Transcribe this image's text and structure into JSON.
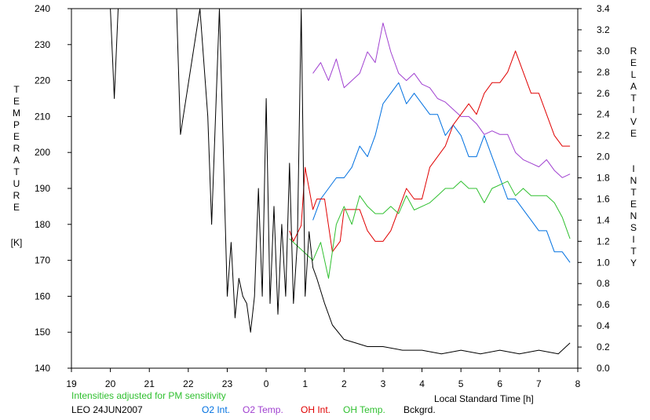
{
  "chart_data": {
    "type": "line",
    "left_axis": {
      "title_letters": [
        "T",
        "E",
        "M",
        "P",
        "E",
        "R",
        "A",
        "T",
        "U",
        "R",
        "E"
      ],
      "unit": "[K]",
      "range": [
        140,
        240
      ],
      "ticks": [
        140,
        150,
        160,
        170,
        180,
        190,
        200,
        210,
        220,
        230,
        240
      ]
    },
    "right_axis": {
      "title_word1": [
        "R",
        "E",
        "L",
        "A",
        "T",
        "I",
        "V",
        "E"
      ],
      "title_word2": [
        "I",
        "N",
        "T",
        "E",
        "N",
        "S",
        "I",
        "T",
        "Y"
      ],
      "range": [
        0.0,
        3.4
      ],
      "ticks": [
        "0.0",
        "0.2",
        "0.4",
        "0.6",
        "0.8",
        "1.0",
        "1.2",
        "1.4",
        "1.6",
        "1.8",
        "2.0",
        "2.2",
        "2.4",
        "2.6",
        "2.8",
        "3.0",
        "3.2",
        "3.4"
      ]
    },
    "x_axis": {
      "label": "Local Standard Time [h]",
      "range": [
        19,
        32
      ],
      "ticks": [
        "19",
        "20",
        "21",
        "22",
        "23",
        "0",
        "1",
        "2",
        "3",
        "4",
        "5",
        "6",
        "7",
        "8"
      ]
    },
    "note": "Intensities adjusted for PM sensitivity",
    "station": "LEO 24JUN2007",
    "legend_placement": "bottom",
    "series": [
      {
        "name": "O2 Int.",
        "color": "#0070e0",
        "axis": "right",
        "x": [
          25.2,
          25.4,
          25.6,
          25.8,
          26.0,
          26.2,
          26.4,
          26.6,
          26.8,
          27.0,
          27.2,
          27.4,
          27.6,
          27.8,
          28.0,
          28.2,
          28.4,
          28.6,
          28.8,
          29.0,
          29.2,
          29.4,
          29.6,
          29.8,
          30.0,
          30.2,
          30.4,
          30.6,
          30.8,
          31.0,
          31.2,
          31.4,
          31.6,
          31.8
        ],
        "values": [
          1.4,
          1.6,
          1.7,
          1.8,
          1.8,
          1.9,
          2.1,
          2.0,
          2.2,
          2.5,
          2.6,
          2.7,
          2.5,
          2.6,
          2.5,
          2.4,
          2.4,
          2.2,
          2.3,
          2.2,
          2.0,
          2.0,
          2.2,
          2.0,
          1.8,
          1.6,
          1.6,
          1.5,
          1.4,
          1.3,
          1.3,
          1.1,
          1.1,
          1.0
        ]
      },
      {
        "name": "O2 Temp.",
        "color": "#a040d0",
        "axis": "left",
        "x": [
          25.2,
          25.4,
          25.6,
          25.8,
          26.0,
          26.2,
          26.4,
          26.6,
          26.8,
          27.0,
          27.2,
          27.4,
          27.6,
          27.8,
          28.0,
          28.2,
          28.4,
          28.6,
          28.8,
          29.0,
          29.2,
          29.4,
          29.6,
          29.8,
          30.0,
          30.2,
          30.4,
          30.6,
          30.8,
          31.0,
          31.2,
          31.4,
          31.6,
          31.8
        ],
        "values": [
          222,
          225,
          220,
          226,
          218,
          220,
          222,
          228,
          225,
          236,
          228,
          222,
          220,
          222,
          219,
          218,
          215,
          214,
          212,
          210,
          210,
          208,
          205,
          206,
          205,
          205,
          200,
          198,
          197,
          196,
          198,
          195,
          193,
          194
        ]
      },
      {
        "name": "OH Int.",
        "color": "#e00000",
        "axis": "right",
        "x": [
          24.6,
          24.7,
          24.9,
          25.0,
          25.2,
          25.3,
          25.5,
          25.7,
          25.9,
          26.0,
          26.2,
          26.4,
          26.6,
          26.8,
          27.0,
          27.2,
          27.4,
          27.6,
          27.8,
          28.0,
          28.2,
          28.4,
          28.6,
          28.8,
          29.0,
          29.2,
          29.4,
          29.6,
          29.8,
          30.0,
          30.2,
          30.4,
          30.6,
          30.8,
          31.0,
          31.2,
          31.4,
          31.6,
          31.8
        ],
        "values": [
          1.3,
          1.2,
          1.35,
          1.9,
          1.5,
          1.6,
          1.6,
          1.1,
          1.2,
          1.5,
          1.5,
          1.5,
          1.3,
          1.2,
          1.2,
          1.3,
          1.5,
          1.7,
          1.6,
          1.6,
          1.9,
          2.0,
          2.1,
          2.3,
          2.4,
          2.5,
          2.4,
          2.6,
          2.7,
          2.7,
          2.8,
          3.0,
          2.8,
          2.6,
          2.6,
          2.4,
          2.2,
          2.1,
          2.1
        ]
      },
      {
        "name": "OH Temp.",
        "color": "#30c030",
        "axis": "left",
        "x": [
          24.6,
          25.2,
          25.4,
          25.6,
          25.8,
          26.0,
          26.2,
          26.4,
          26.6,
          26.8,
          27.0,
          27.2,
          27.4,
          27.6,
          27.8,
          28.0,
          28.2,
          28.4,
          28.6,
          28.8,
          29.0,
          29.2,
          29.4,
          29.6,
          29.8,
          30.0,
          30.2,
          30.4,
          30.6,
          30.8,
          31.0,
          31.2,
          31.4,
          31.6,
          31.8
        ],
        "values": [
          176,
          170,
          175,
          165,
          180,
          185,
          180,
          188,
          185,
          183,
          183,
          185,
          183,
          188,
          184,
          185,
          186,
          188,
          190,
          190,
          192,
          190,
          190,
          186,
          190,
          191,
          192,
          188,
          190,
          188,
          188,
          188,
          186,
          182,
          176
        ]
      },
      {
        "name": "Bckgrd.",
        "color": "#000000",
        "axis": "left",
        "x": [
          20.0,
          20.1,
          20.2,
          21.7,
          21.8,
          22.3,
          22.5,
          22.6,
          22.8,
          23.0,
          23.1,
          23.2,
          23.3,
          23.4,
          23.5,
          23.6,
          23.7,
          23.8,
          23.9,
          24.0,
          24.1,
          24.2,
          24.3,
          24.4,
          24.5,
          24.6,
          24.7,
          24.8,
          24.9,
          25.0,
          25.1,
          25.2,
          25.3,
          25.5,
          25.7,
          26.0,
          26.3,
          26.6,
          27.0,
          27.5,
          28.0,
          28.5,
          29.0,
          29.5,
          30.0,
          30.5,
          31.0,
          31.5,
          31.8
        ],
        "values": [
          240,
          215,
          240,
          240,
          205,
          240,
          210,
          180,
          240,
          160,
          175,
          154,
          165,
          160,
          158,
          150,
          160,
          190,
          160,
          215,
          158,
          185,
          155,
          180,
          160,
          197,
          158,
          175,
          240,
          160,
          178,
          168,
          165,
          158,
          152,
          148,
          147,
          146,
          146,
          145,
          145,
          144,
          145,
          144,
          145,
          144,
          145,
          144,
          147
        ]
      }
    ]
  }
}
